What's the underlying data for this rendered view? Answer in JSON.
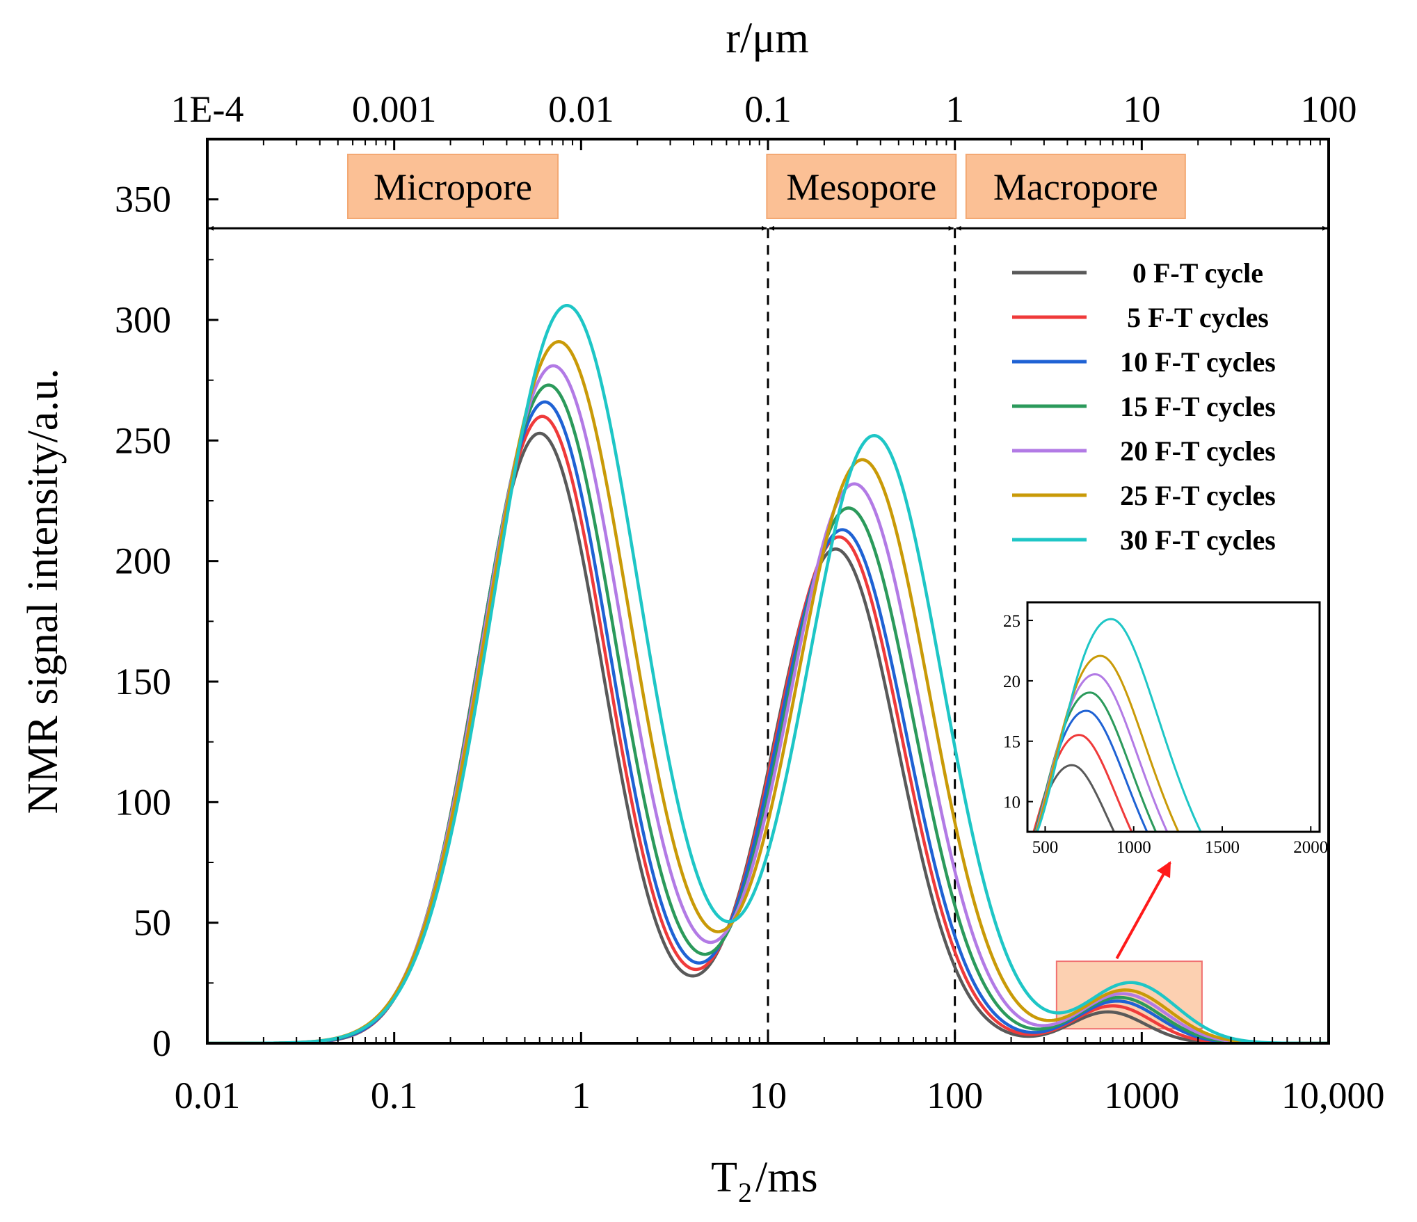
{
  "chart_data": {
    "type": "line",
    "x_scale": "log",
    "xlabel_main": "T",
    "xlabel_sub": "2",
    "xlabel_unit": "/ms",
    "ylabel": "NMR signal intensity/a.u.",
    "top_axis_label": "r/μm",
    "xlim": [
      0.01,
      10000
    ],
    "ylim": [
      0,
      375
    ],
    "x_ticks": [
      {
        "value": 0.01,
        "label": "0.01"
      },
      {
        "value": 0.1,
        "label": "0.1"
      },
      {
        "value": 1,
        "label": "1"
      },
      {
        "value": 10,
        "label": "10"
      },
      {
        "value": 100,
        "label": "100"
      },
      {
        "value": 1000,
        "label": "1000"
      },
      {
        "value": 10000,
        "label": "10,000"
      }
    ],
    "top_ticks": [
      {
        "value": 0.01,
        "label": "1E-4"
      },
      {
        "value": 0.1,
        "label": "0.001"
      },
      {
        "value": 1,
        "label": "0.01"
      },
      {
        "value": 10,
        "label": "0.1"
      },
      {
        "value": 100,
        "label": "1"
      },
      {
        "value": 1000,
        "label": "10"
      },
      {
        "value": 10000,
        "label": "100"
      }
    ],
    "y_ticks": [
      {
        "value": 0,
        "label": "0"
      },
      {
        "value": 50,
        "label": "50"
      },
      {
        "value": 100,
        "label": "100"
      },
      {
        "value": 150,
        "label": "150"
      },
      {
        "value": 200,
        "label": "200"
      },
      {
        "value": 250,
        "label": "250"
      },
      {
        "value": 300,
        "label": "300"
      },
      {
        "value": 350,
        "label": "350"
      }
    ],
    "regions": [
      {
        "label": "Micropore",
        "from": 0.01,
        "to": 10
      },
      {
        "label": "Mesopore",
        "from": 10,
        "to": 100
      },
      {
        "label": "Macropore",
        "from": 100,
        "to": 10000
      }
    ],
    "boundaries": [
      10,
      100
    ],
    "region_arrow_y": 338,
    "highlight_box": {
      "x_from": 350,
      "x_to": 2100,
      "y_from": 6,
      "y_to": 34
    },
    "series": [
      {
        "name": "0 F-T cycle",
        "color": "#595959",
        "peaks": [
          {
            "x": 0.6,
            "y": 253,
            "w": 0.34
          },
          {
            "x": 23,
            "y": 205,
            "w": 0.33
          },
          {
            "x": 660,
            "y": 13,
            "w": 0.2
          }
        ]
      },
      {
        "name": "5 F-T cycles",
        "color": "#ef3a3a",
        "peaks": [
          {
            "x": 0.62,
            "y": 260,
            "w": 0.345
          },
          {
            "x": 24,
            "y": 210,
            "w": 0.335
          },
          {
            "x": 700,
            "y": 15.5,
            "w": 0.21
          }
        ]
      },
      {
        "name": "10 F-T cycles",
        "color": "#1f62d4",
        "peaks": [
          {
            "x": 0.64,
            "y": 266,
            "w": 0.35
          },
          {
            "x": 25,
            "y": 213,
            "w": 0.34
          },
          {
            "x": 740,
            "y": 17.5,
            "w": 0.22
          }
        ]
      },
      {
        "name": "15 F-T cycles",
        "color": "#2b9a5b",
        "peaks": [
          {
            "x": 0.67,
            "y": 273,
            "w": 0.36
          },
          {
            "x": 27,
            "y": 222,
            "w": 0.345
          },
          {
            "x": 760,
            "y": 19,
            "w": 0.225
          }
        ]
      },
      {
        "name": "20 F-T cycles",
        "color": "#b27ae5",
        "peaks": [
          {
            "x": 0.71,
            "y": 281,
            "w": 0.37
          },
          {
            "x": 29,
            "y": 232,
            "w": 0.35
          },
          {
            "x": 790,
            "y": 20.5,
            "w": 0.23
          }
        ]
      },
      {
        "name": "25 F-T cycles",
        "color": "#c99a07",
        "peaks": [
          {
            "x": 0.76,
            "y": 291,
            "w": 0.38
          },
          {
            "x": 32,
            "y": 242,
            "w": 0.355
          },
          {
            "x": 820,
            "y": 22,
            "w": 0.235
          }
        ]
      },
      {
        "name": "30 F-T cycles",
        "color": "#1ec6c6",
        "peaks": [
          {
            "x": 0.84,
            "y": 306,
            "w": 0.39
          },
          {
            "x": 37,
            "y": 252,
            "w": 0.36
          },
          {
            "x": 880,
            "y": 25,
            "w": 0.24
          }
        ]
      }
    ],
    "inset": {
      "xlim": [
        400,
        2050
      ],
      "ylim": [
        7.5,
        26.5
      ],
      "x_ticks": [
        {
          "value": 500,
          "label": "500"
        },
        {
          "value": 1000,
          "label": "1000"
        },
        {
          "value": 1500,
          "label": "1500"
        },
        {
          "value": 2000,
          "label": "2000"
        }
      ],
      "y_ticks": [
        {
          "value": 10,
          "label": "10"
        },
        {
          "value": 15,
          "label": "15"
        },
        {
          "value": 20,
          "label": "20"
        },
        {
          "value": 25,
          "label": "25"
        }
      ]
    }
  }
}
